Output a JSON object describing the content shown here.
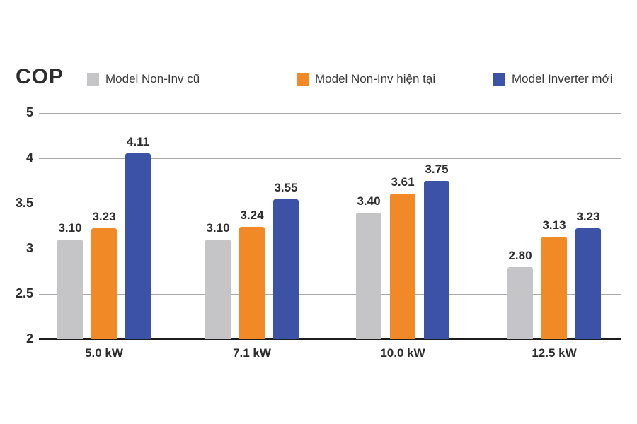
{
  "chart_data": {
    "type": "bar",
    "title": "COP",
    "ylabel": "COP",
    "xlabel": "",
    "grid": true,
    "legend_position": "top",
    "categories": [
      "5.0 kW",
      "7.1 kW",
      "10.0 kW",
      "12.5 kW"
    ],
    "series": [
      {
        "name": "Model Non-Inv cũ",
        "color": "#C5C5C7",
        "values": [
          3.1,
          3.1,
          3.4,
          2.8
        ],
        "value_labels": [
          "3.10",
          "3.10",
          "3.40",
          "2.80"
        ]
      },
      {
        "name": "Model Non-Inv hiện tại",
        "color": "#F18A26",
        "values": [
          3.23,
          3.24,
          3.61,
          3.13
        ],
        "value_labels": [
          "3.23",
          "3.24",
          "3.61",
          "3.13"
        ]
      },
      {
        "name": "Model Inverter mới",
        "color": "#3B52A6",
        "values": [
          4.11,
          3.55,
          3.75,
          3.23
        ],
        "value_labels": [
          "4.11",
          "3.55",
          "3.75",
          "3.23"
        ]
      }
    ],
    "y_axis": {
      "ticks": [
        {
          "label": "5",
          "value": 5
        },
        {
          "label": "4",
          "value": 4
        },
        {
          "label": "3.5",
          "value": 3.5
        },
        {
          "label": "3",
          "value": 3
        },
        {
          "label": "2.5",
          "value": 2.5
        },
        {
          "label": "2",
          "value": 2
        }
      ],
      "min": 2,
      "max": 5,
      "note": "axis compressed above 4 — no 4.5 gridline; 4→5 spans one gridline step"
    },
    "colors": {
      "gridline": "#A8A8A8",
      "baseline": "#1C1C1C",
      "text": "#2D2D2D",
      "background": "#FFFFFF"
    }
  }
}
